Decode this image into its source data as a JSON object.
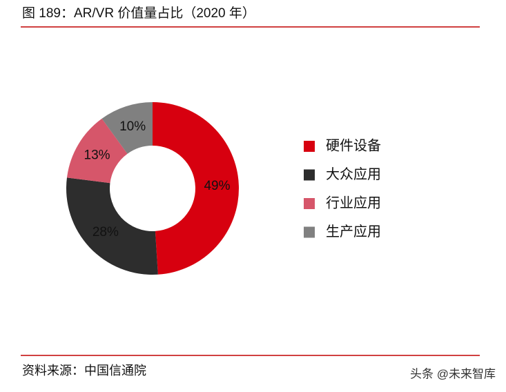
{
  "chart_data": {
    "type": "donut",
    "title": "图 189：AR/VR 价值量占比（2020 年）",
    "categories": [
      "硬件设备",
      "大众应用",
      "行业应用",
      "生产应用"
    ],
    "values": [
      49,
      28,
      13,
      10
    ],
    "value_labels": [
      "49%",
      "28%",
      "13%",
      "10%"
    ],
    "colors": [
      "#d7000f",
      "#2d2d2d",
      "#d6566a",
      "#808080"
    ],
    "source": "资料来源：中国信通院",
    "watermark": "头条 @未来智库"
  }
}
